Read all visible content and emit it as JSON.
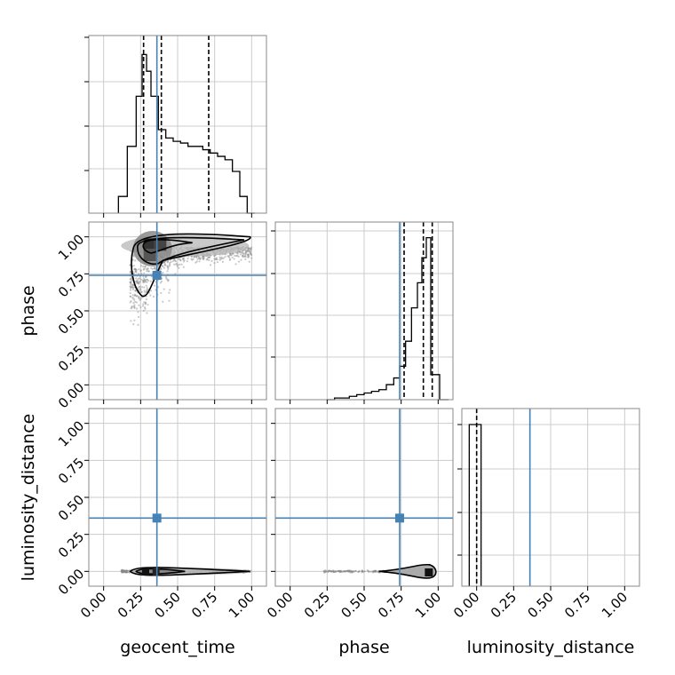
{
  "chart_data": {
    "type": "corner",
    "parameters": [
      "geocent_time",
      "phase",
      "luminosity_distance"
    ],
    "axis_range": [
      -0.1,
      1.1
    ],
    "tick_values": [
      0.0,
      0.25,
      0.5,
      0.75,
      1.0
    ],
    "tick_labels": [
      "0.00",
      "0.25",
      "0.50",
      "0.75",
      "1.00"
    ],
    "grid": true,
    "colors": {
      "truth": "#4682b4",
      "histogram": "#000000",
      "scatter": "#888888",
      "frame": "#888888",
      "grid": "#cccccc"
    },
    "truth_values": {
      "geocent_time": 0.36,
      "phase": 0.74,
      "luminosity_distance": 0.36
    },
    "quantiles": {
      "geocent_time": [
        0.27,
        0.39,
        0.71
      ],
      "phase": [
        0.77,
        0.9,
        0.96
      ],
      "luminosity_distance": [
        0.0
      ]
    },
    "histograms": {
      "geocent_time": {
        "bin_edges": [
          0.1,
          0.16,
          0.22,
          0.26,
          0.29,
          0.32,
          0.37,
          0.42,
          0.47,
          0.52,
          0.57,
          0.62,
          0.67,
          0.72,
          0.77,
          0.82,
          0.87,
          0.92,
          0.97,
          1.02
        ],
        "counts": [
          0.1,
          0.4,
          0.7,
          0.95,
          0.85,
          0.7,
          0.5,
          0.45,
          0.43,
          0.42,
          0.4,
          0.4,
          0.38,
          0.36,
          0.34,
          0.32,
          0.25,
          0.1,
          0.0
        ]
      },
      "phase": {
        "bin_edges": [
          0.25,
          0.3,
          0.35,
          0.4,
          0.45,
          0.5,
          0.55,
          0.6,
          0.65,
          0.7,
          0.74,
          0.78,
          0.82,
          0.86,
          0.89,
          0.92,
          0.95,
          1.01,
          1.07
        ],
        "counts": [
          0.0,
          0.01,
          0.01,
          0.02,
          0.03,
          0.04,
          0.05,
          0.06,
          0.09,
          0.13,
          0.2,
          0.35,
          0.55,
          0.7,
          0.85,
          0.97,
          0.15,
          0.0
        ]
      },
      "luminosity_distance": {
        "bin_edges": [
          -0.05,
          0.03
        ],
        "counts": [
          1.0
        ]
      }
    },
    "contours": {
      "phase_vs_geocent_time": {
        "center": [
          0.33,
          0.94
        ],
        "blobs": [
          [
            0.33,
            0.94
          ],
          [
            0.55,
            0.96
          ],
          [
            0.75,
            0.97
          ],
          [
            0.28,
            0.85
          ]
        ]
      },
      "luminosity_distance_vs_geocent_time": {
        "center": [
          0.3,
          0.0
        ]
      },
      "luminosity_distance_vs_phase": {
        "center": [
          0.93,
          -0.01
        ]
      }
    }
  }
}
